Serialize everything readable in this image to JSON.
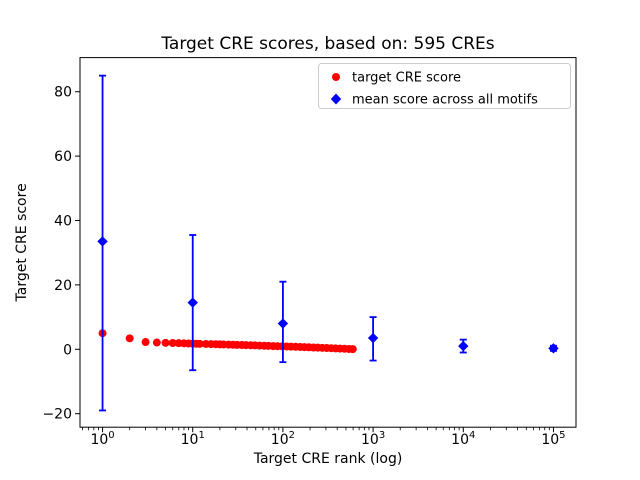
{
  "figure": {
    "title": "Target CRE scores, based on: 595 CREs",
    "xlabel": "Target CRE rank (log)",
    "ylabel": "Target CRE score",
    "background": "#ffffff"
  },
  "chart_data": {
    "type": "scatter",
    "title": "Target CRE scores, based on: 595 CREs",
    "xlabel": "Target CRE rank (log)",
    "ylabel": "Target CRE score",
    "x_scale": "log",
    "xlim_log10": [
      -0.25,
      5.25
    ],
    "ylim": [
      -24.2,
      90.6
    ],
    "x_ticks": [
      1,
      10,
      100,
      1000,
      10000,
      100000
    ],
    "x_tick_labels": [
      "10⁰",
      "10¹",
      "10²",
      "10³",
      "10⁴",
      "10⁵"
    ],
    "x_tick_exponents": [
      0,
      1,
      2,
      3,
      4,
      5
    ],
    "y_ticks": [
      -20,
      0,
      20,
      40,
      60,
      80
    ],
    "y_tick_labels": [
      "−20",
      "0",
      "20",
      "40",
      "60",
      "80"
    ],
    "grid": false,
    "legend_position": "upper right",
    "colors": {
      "target": "#ff0000",
      "mean": "#0000ff",
      "axis": "#000000",
      "legend_border": "#cccccc"
    },
    "series": [
      {
        "name": "target CRE score",
        "marker": "circle",
        "color": "#ff0000",
        "x": [
          1,
          2,
          3,
          4,
          5,
          6,
          7,
          8,
          9,
          10,
          11,
          12,
          14,
          16,
          18,
          20,
          22,
          25,
          28,
          31,
          35,
          39,
          44,
          49,
          55,
          62,
          69,
          78,
          87,
          98,
          110,
          123,
          138,
          155,
          173,
          194,
          218,
          244,
          273,
          306,
          343,
          384,
          430,
          482,
          540,
          595
        ],
        "y": [
          5.0,
          3.4,
          2.25,
          2.1,
          2.0,
          1.95,
          1.9,
          1.85,
          1.8,
          1.75,
          1.72,
          1.7,
          1.65,
          1.6,
          1.57,
          1.53,
          1.5,
          1.45,
          1.4,
          1.36,
          1.32,
          1.28,
          1.24,
          1.2,
          1.15,
          1.1,
          1.05,
          1.0,
          0.96,
          0.92,
          0.87,
          0.82,
          0.77,
          0.72,
          0.67,
          0.62,
          0.56,
          0.5,
          0.45,
          0.4,
          0.34,
          0.28,
          0.22,
          0.16,
          0.1,
          0.05
        ]
      },
      {
        "name": "mean score across all motifs",
        "marker": "diamond",
        "color": "#0000ff",
        "x": [
          1,
          10,
          100,
          1000,
          10000,
          100000
        ],
        "y": [
          33.5,
          14.5,
          8.0,
          3.5,
          1.0,
          0.3
        ],
        "err_low": [
          52.5,
          21.0,
          12.0,
          7.0,
          2.0,
          0.8
        ],
        "err_high": [
          51.5,
          21.0,
          13.0,
          6.5,
          2.0,
          0.8
        ]
      }
    ]
  }
}
